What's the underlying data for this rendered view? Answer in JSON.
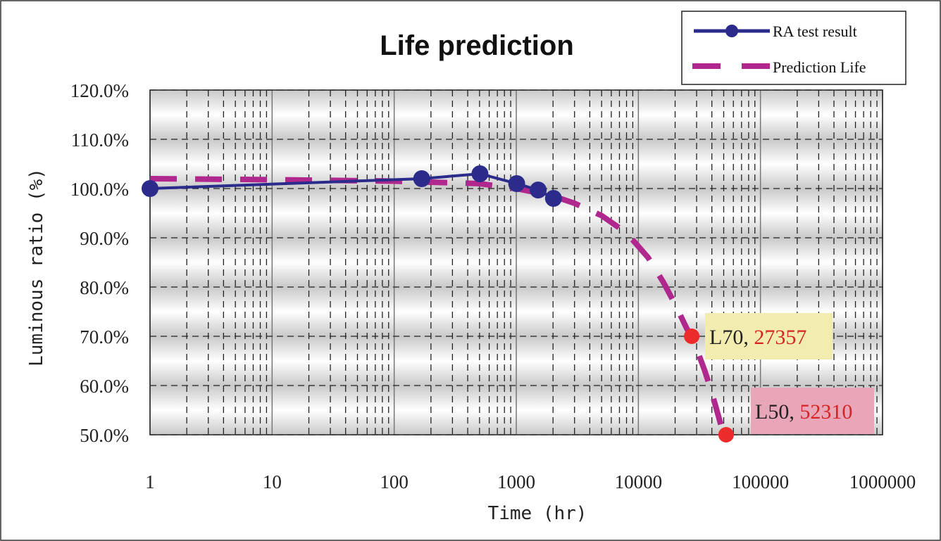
{
  "chart_data": {
    "type": "line",
    "title": "Life prediction",
    "xlabel": "Time (hr)",
    "ylabel": "Luminous ratio (%)",
    "x_scale": "log",
    "xlim": [
      1,
      1000000
    ],
    "ylim": [
      0.5,
      1.2
    ],
    "x_tick_labels": [
      "1",
      "10",
      "100",
      "1000",
      "10000",
      "100000",
      "1000000"
    ],
    "y_tick_labels": [
      "120.0%",
      "110.0%",
      "100.0%",
      "90.0%",
      "80.0%",
      "70.0%",
      "60.0%",
      "50.0%"
    ],
    "y_ticks": [
      1.2,
      1.1,
      1.0,
      0.9,
      0.8,
      0.7,
      0.6,
      0.5
    ],
    "grid": true,
    "legend_position": "top-right",
    "series": [
      {
        "name": "RA test result",
        "color": "#2b2b8c",
        "style": "solid-line-circle-markers",
        "x": [
          1,
          168,
          504,
          1008,
          1512,
          2016
        ],
        "y": [
          1.0,
          1.02,
          1.03,
          1.01,
          0.997,
          0.98
        ]
      },
      {
        "name": "Prediction Life",
        "color": "#b0278e",
        "style": "dashed",
        "x": [
          1,
          10,
          100,
          500,
          1000,
          2000,
          3000,
          5000,
          8000,
          12000,
          16000,
          20000,
          25000,
          27357,
          30000,
          35000,
          40000,
          45000,
          48000,
          52310
        ],
        "y": [
          1.02,
          1.018,
          1.015,
          1.01,
          1.0,
          0.985,
          0.97,
          0.945,
          0.91,
          0.86,
          0.81,
          0.765,
          0.715,
          0.7,
          0.675,
          0.63,
          0.585,
          0.54,
          0.515,
          0.5
        ]
      }
    ],
    "annotations": [
      {
        "label": "L70, ",
        "value": "27357",
        "x": 27357,
        "y": 0.7,
        "box_color": "#f3ecb0"
      },
      {
        "label": "L50, ",
        "value": "52310",
        "x": 52310,
        "y": 0.5,
        "box_color": "#e9a6b8"
      }
    ],
    "point_colors": {
      "marker": "#2b2b8c",
      "lifetime_marker": "#ec2b2b",
      "value_text": "#d42424"
    }
  }
}
